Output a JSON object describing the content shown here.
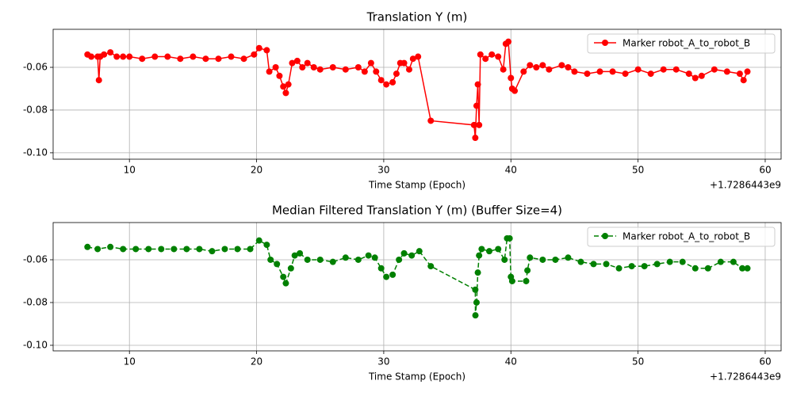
{
  "chart_data": [
    {
      "type": "line",
      "title": "Translation Y (m)",
      "xlabel": "Time Stamp (Epoch)",
      "x_offset_label": "+1.7286443e9",
      "x": [
        6.7,
        7.0,
        7.5,
        7.6,
        7.7,
        8.0,
        8.5,
        9.0,
        9.5,
        10,
        11,
        12,
        13,
        14,
        15,
        16,
        17,
        18,
        19,
        19.8,
        20.2,
        20.8,
        21.0,
        21.5,
        21.8,
        22.1,
        22.3,
        22.5,
        22.8,
        23.2,
        23.6,
        24.0,
        24.5,
        25,
        26,
        27,
        28,
        28.5,
        29,
        29.4,
        29.8,
        30.2,
        30.7,
        31.0,
        31.3,
        31.6,
        32.0,
        32.3,
        32.7,
        33.7,
        37.1,
        37.2,
        37.3,
        37.4,
        37.5,
        37.6,
        38.0,
        38.5,
        39.0,
        39.4,
        39.6,
        39.8,
        40.0,
        40.1,
        40.3,
        41.0,
        41.5,
        42,
        42.5,
        43,
        44,
        44.5,
        45,
        46,
        47,
        48,
        49,
        50,
        51,
        52,
        53,
        54,
        54.5,
        55,
        56,
        57,
        58,
        58.3,
        58.6
      ],
      "series": [
        {
          "name": "Marker robot_A_to_robot_B",
          "color": "#ff0000",
          "linestyle": "solid",
          "values": [
            -0.054,
            -0.055,
            -0.055,
            -0.066,
            -0.055,
            -0.054,
            -0.053,
            -0.055,
            -0.055,
            -0.055,
            -0.056,
            -0.055,
            -0.055,
            -0.056,
            -0.055,
            -0.056,
            -0.056,
            -0.055,
            -0.056,
            -0.054,
            -0.051,
            -0.052,
            -0.062,
            -0.06,
            -0.064,
            -0.069,
            -0.072,
            -0.068,
            -0.058,
            -0.057,
            -0.06,
            -0.058,
            -0.06,
            -0.061,
            -0.06,
            -0.061,
            -0.06,
            -0.062,
            -0.058,
            -0.062,
            -0.066,
            -0.068,
            -0.067,
            -0.063,
            -0.058,
            -0.058,
            -0.061,
            -0.056,
            -0.055,
            -0.085,
            -0.087,
            -0.093,
            -0.078,
            -0.068,
            -0.087,
            -0.054,
            -0.056,
            -0.054,
            -0.055,
            -0.061,
            -0.049,
            -0.048,
            -0.065,
            -0.07,
            -0.071,
            -0.062,
            -0.059,
            -0.06,
            -0.059,
            -0.061,
            -0.059,
            -0.06,
            -0.062,
            -0.063,
            -0.062,
            -0.062,
            -0.063,
            -0.061,
            -0.063,
            -0.061,
            -0.061,
            -0.063,
            -0.065,
            -0.064,
            -0.061,
            -0.062,
            -0.063,
            -0.066,
            -0.062
          ]
        }
      ],
      "xlim": [
        4.0,
        61.25
      ],
      "ylim": [
        -0.103,
        -0.0422
      ],
      "xticks": [
        10,
        20,
        30,
        40,
        50,
        60
      ],
      "yticks": [
        -0.06,
        -0.08,
        {
          "value": -0.1,
          "label": "-0.10"
        }
      ],
      "grid": true,
      "legend": "upper right"
    },
    {
      "type": "line",
      "title": "Median Filtered Translation Y (m) (Buffer Size=4)",
      "xlabel": "Time Stamp (Epoch)",
      "x_offset_label": "+1.7286443e9",
      "x": [
        6.7,
        7.5,
        8.5,
        9.5,
        10.5,
        11.5,
        12.5,
        13.5,
        14.5,
        15.5,
        16.5,
        17.5,
        18.5,
        19.5,
        20.2,
        20.8,
        21.1,
        21.6,
        22.1,
        22.3,
        22.7,
        23.0,
        23.4,
        24,
        25,
        26,
        27,
        28,
        28.8,
        29.3,
        29.8,
        30.2,
        30.7,
        31.2,
        31.6,
        32.2,
        32.8,
        33.7,
        37.2,
        37.21,
        37.3,
        37.4,
        37.5,
        37.7,
        38.3,
        39.0,
        39.5,
        39.7,
        39.9,
        40.0,
        40.1,
        41.2,
        41.3,
        41.5,
        42.5,
        43.5,
        44.5,
        45.5,
        46.5,
        47.5,
        48.5,
        49.5,
        50.5,
        51.5,
        52.5,
        53.5,
        54.5,
        55.5,
        56.5,
        57.5,
        58.2,
        58.6
      ],
      "series": [
        {
          "name": "Marker robot_A_to_robot_B",
          "color": "#008000",
          "linestyle": "dashed",
          "values": [
            -0.054,
            -0.055,
            -0.054,
            -0.055,
            -0.055,
            -0.055,
            -0.055,
            -0.055,
            -0.055,
            -0.055,
            -0.056,
            -0.055,
            -0.055,
            -0.055,
            -0.051,
            -0.053,
            -0.06,
            -0.062,
            -0.068,
            -0.071,
            -0.064,
            -0.058,
            -0.057,
            -0.06,
            -0.06,
            -0.061,
            -0.059,
            -0.06,
            -0.058,
            -0.059,
            -0.064,
            -0.068,
            -0.067,
            -0.06,
            -0.057,
            -0.058,
            -0.056,
            -0.063,
            -0.074,
            -0.086,
            -0.08,
            -0.066,
            -0.058,
            -0.055,
            -0.056,
            -0.055,
            -0.06,
            -0.05,
            -0.05,
            -0.068,
            -0.07,
            -0.07,
            -0.065,
            -0.059,
            -0.06,
            -0.06,
            -0.059,
            -0.061,
            -0.062,
            -0.062,
            -0.064,
            -0.063,
            -0.063,
            -0.062,
            -0.061,
            -0.061,
            -0.064,
            -0.064,
            -0.061,
            -0.061,
            -0.064,
            -0.064
          ]
        }
      ],
      "xlim": [
        4.0,
        61.25
      ],
      "ylim": [
        -0.1026,
        -0.0426
      ],
      "xticks": [
        10,
        20,
        30,
        40,
        50,
        60
      ],
      "yticks": [
        -0.06,
        -0.08,
        {
          "value": -0.1,
          "label": "-0.10"
        }
      ],
      "grid": true,
      "legend": "upper right"
    }
  ]
}
